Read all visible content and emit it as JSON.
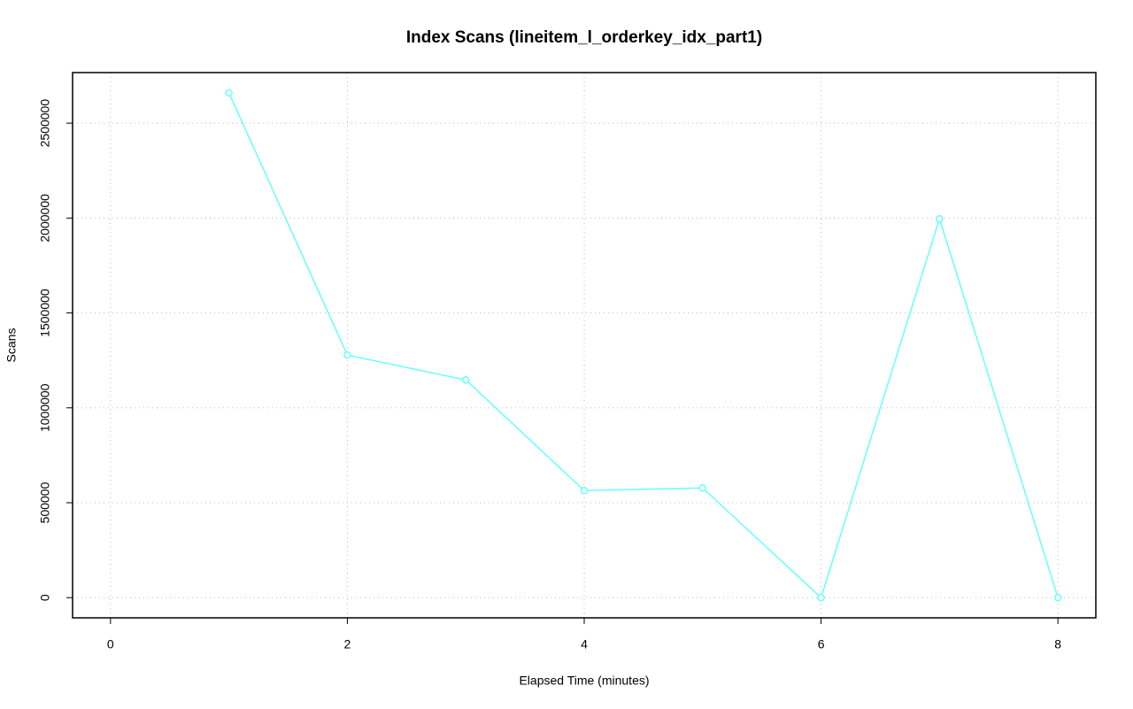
{
  "chart_data": {
    "type": "line",
    "title": "Index Scans (lineitem_l_orderkey_idx_part1)",
    "x_label": "Elapsed Time (minutes)",
    "y_label": "Scans",
    "x": [
      1,
      2,
      3,
      4,
      5,
      6,
      7,
      8
    ],
    "series": [
      {
        "name": "lineitem_l_orderkey_idx_part1",
        "color": "#66ffff",
        "values": [
          2660000,
          1278000,
          1147000,
          564000,
          578000,
          0,
          1996000,
          0
        ]
      }
    ],
    "xlim": [
      -0.32,
      8.32
    ],
    "xticks": [
      0,
      2,
      4,
      6,
      8
    ],
    "ylim": [
      -106400,
      2766400
    ],
    "yticks": [
      0,
      500000,
      1000000,
      1500000,
      2000000,
      2500000
    ],
    "grid": true
  }
}
